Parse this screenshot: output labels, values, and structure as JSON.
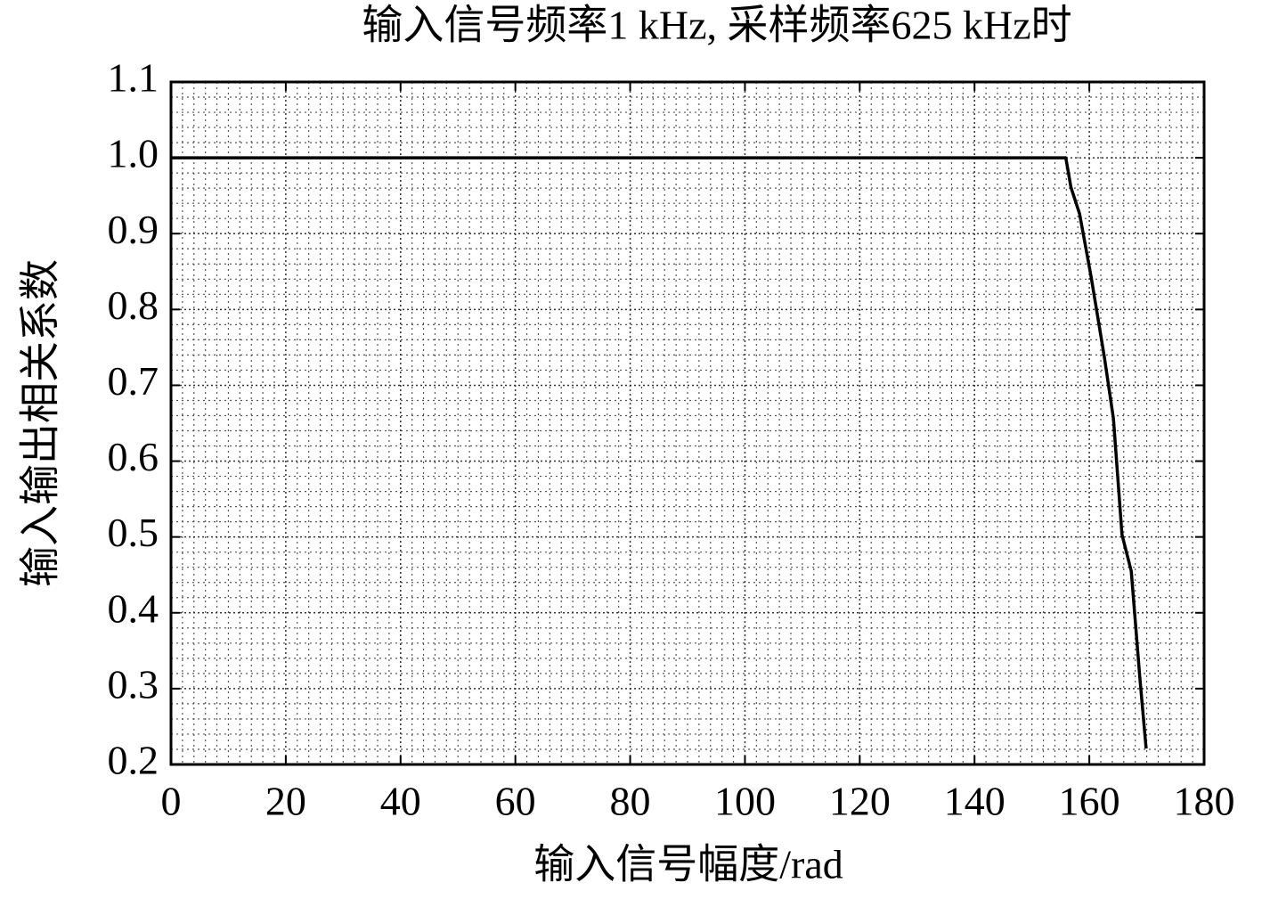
{
  "chart_data": {
    "type": "line",
    "title": "输入信号频率1 kHz, 采样频率625 kHz时",
    "xlabel": "输入信号幅度/rad",
    "ylabel": "输入输出相关系数",
    "x": [
      0,
      155.9,
      156.8,
      158.3,
      160.3,
      162.6,
      164.2,
      165.7,
      167.3,
      168.8,
      169.9
    ],
    "series": [
      {
        "name": "输入输出相关系数",
        "color": "#000000",
        "values": [
          1,
          1,
          0.961,
          0.926,
          0.844,
          0.738,
          0.656,
          0.503,
          0.455,
          0.315,
          0.221
        ]
      }
    ],
    "xlim": [
      0,
      180
    ],
    "xticks": [
      0,
      20,
      40,
      60,
      80,
      100,
      120,
      140,
      160,
      180
    ],
    "ylim": [
      0.2,
      1.1
    ],
    "yticks": [
      0.2,
      0.3,
      0.4,
      0.5,
      0.6,
      0.7,
      0.8,
      0.9,
      {
        "value": 1,
        "label": "1.0"
      },
      1.1
    ],
    "grid": true
  }
}
